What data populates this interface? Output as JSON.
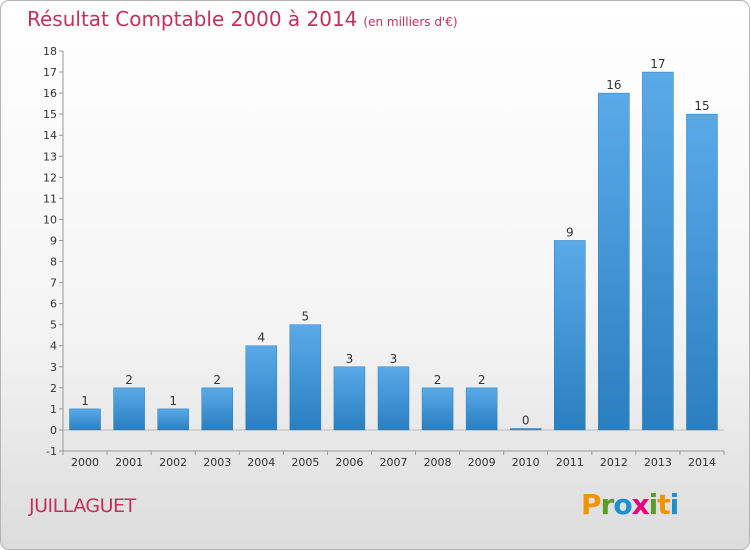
{
  "title": "Résultat Comptable 2000 à 2014",
  "subtitle": "(en milliers d'€)",
  "commune": "JUILLAGUET",
  "logo": {
    "text": "Proxiti",
    "letters": [
      "P",
      "r",
      "o",
      "x",
      "i",
      "t",
      "i"
    ],
    "colors": [
      "#f29400",
      "#5a9b2e",
      "#1e8fd0",
      "#e6007e",
      "#5a9b2e",
      "#f29400",
      "#1e8fd0"
    ]
  },
  "chart_data": {
    "type": "bar",
    "categories": [
      "2000",
      "2001",
      "2002",
      "2003",
      "2004",
      "2005",
      "2006",
      "2007",
      "2008",
      "2009",
      "2010",
      "2011",
      "2012",
      "2013",
      "2014"
    ],
    "values": [
      1,
      2,
      1,
      2,
      4,
      5,
      3,
      3,
      2,
      2,
      0,
      9,
      16,
      17,
      15
    ],
    "value_labels": [
      "1",
      "2",
      "1",
      "2",
      "4",
      "5",
      "3",
      "3",
      "2",
      "2",
      "0",
      "9",
      "16",
      "17",
      "15"
    ],
    "title": "Résultat Comptable 2000 à 2014",
    "xlabel": "",
    "ylabel": "",
    "ylim": [
      -1,
      18
    ],
    "yticks": [
      -1,
      0,
      1,
      2,
      3,
      4,
      5,
      6,
      7,
      8,
      9,
      10,
      11,
      12,
      13,
      14,
      15,
      16,
      17,
      18
    ],
    "grid": false,
    "bar_color": "#3b95d6"
  }
}
